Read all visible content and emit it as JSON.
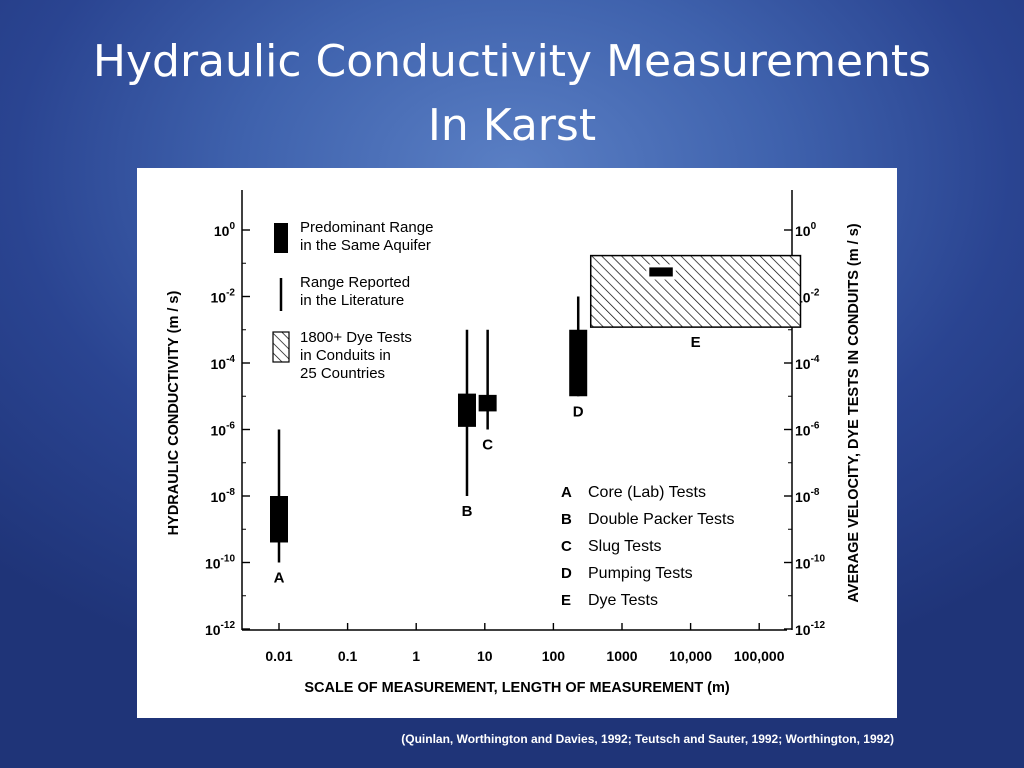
{
  "slide": {
    "title_line1": "Hydraulic Conductivity Measurements",
    "title_line2": "In Karst",
    "citation": "(Quinlan, Worthington and Davies, 1992; Teutsch and Sauter, 1992; Worthington, 1992)"
  },
  "chart_data": {
    "type": "range",
    "xlabel": "SCALE OF MEASUREMENT, LENGTH OF MEASUREMENT (m)",
    "ylabel": "HYDRAULIC CONDUCTIVITY (m / s)",
    "ylabel_right": "AVERAGE VELOCITY, DYE TESTS IN CONDUITS (m / s)",
    "x_scale": "log",
    "y_scale": "log",
    "x_tick_labels": [
      "0.01",
      "0.1",
      "1",
      "10",
      "100",
      "1000",
      "10,000",
      "100,000"
    ],
    "y_tick_exponents": [
      "0",
      "-2",
      "-4",
      "-6",
      "-8",
      "-10",
      "-12"
    ],
    "legend": {
      "items": [
        {
          "symbol": "solid",
          "line1": "Predominant Range",
          "line2": "in the Same Aquifer"
        },
        {
          "symbol": "line",
          "line1": "Range Reported",
          "line2": "in the Literature"
        },
        {
          "symbol": "hatched",
          "line1": "1800+ Dye Tests",
          "line2": "in Conduits in",
          "line3": "25 Countries"
        }
      ]
    },
    "key": [
      {
        "letter": "A",
        "name": "Core (Lab) Tests"
      },
      {
        "letter": "B",
        "name": "Double Packer Tests"
      },
      {
        "letter": "C",
        "name": "Slug Tests"
      },
      {
        "letter": "D",
        "name": "Pumping Tests"
      },
      {
        "letter": "E",
        "name": "Dye Tests"
      }
    ],
    "series": [
      {
        "label": "A",
        "x": 0.01,
        "line_range": [
          1e-10,
          1e-06
        ],
        "box_range": [
          4e-10,
          1e-08
        ]
      },
      {
        "label": "B",
        "x": 5.5,
        "line_range": [
          1e-08,
          0.001
        ],
        "box_range": [
          1.2e-06,
          1.2e-05
        ]
      },
      {
        "label": "C",
        "x": 11,
        "line_range": [
          1e-06,
          0.001
        ],
        "box_range": [
          3.5e-06,
          1.1e-05
        ]
      },
      {
        "label": "D",
        "x": 230,
        "line_range": [
          1e-05,
          0.01
        ],
        "box_range": [
          1e-05,
          0.001
        ]
      },
      {
        "label": "E",
        "x_range": [
          350,
          400000
        ],
        "hatched_range": [
          0.0012,
          0.17
        ],
        "box_x_range": [
          2500,
          5500
        ],
        "box_range": [
          0.04,
          0.075
        ]
      }
    ]
  }
}
